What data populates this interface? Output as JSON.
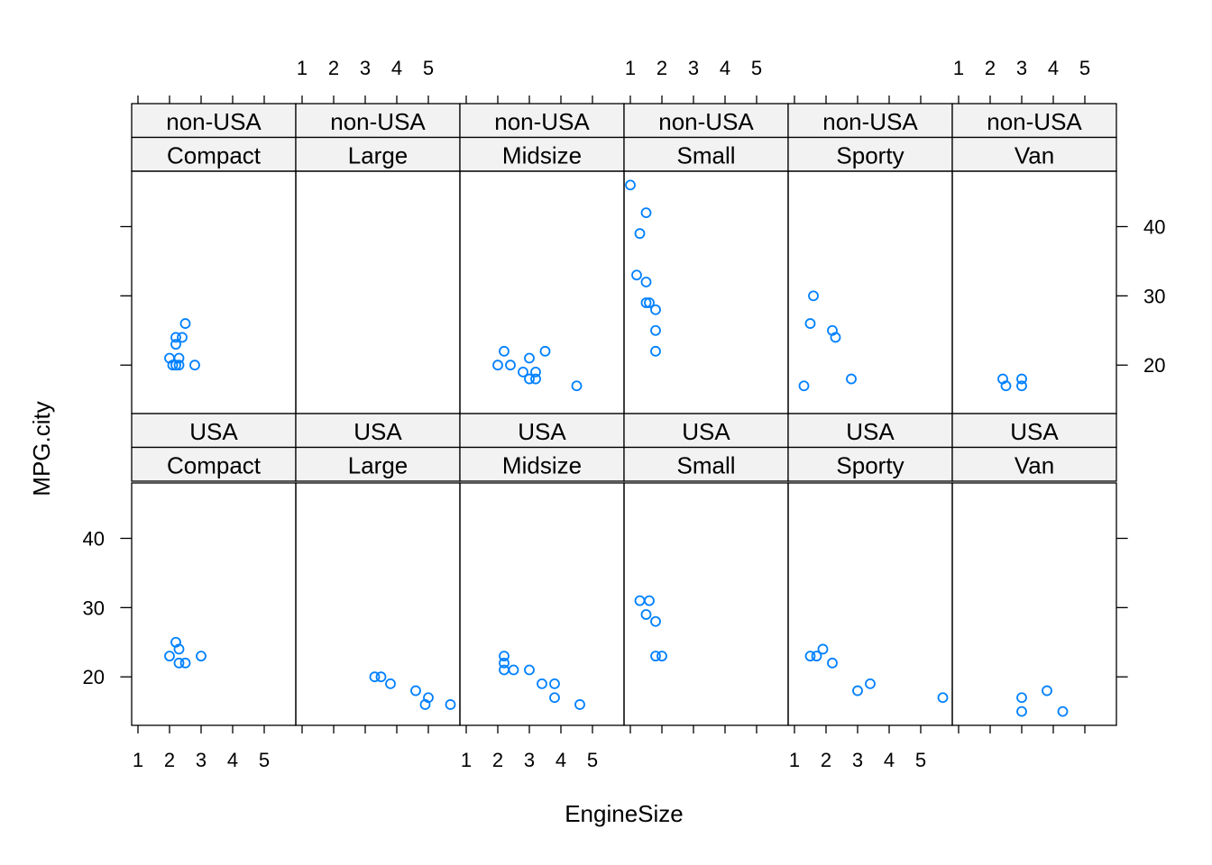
{
  "chart_data": {
    "type": "scatter",
    "xlabel": "EngineSize",
    "ylabel": "MPG.city",
    "x_ticks": [
      1,
      2,
      3,
      4,
      5
    ],
    "y_ticks": [
      20,
      30,
      40
    ],
    "xlim": [
      0.8,
      6.0
    ],
    "ylim": [
      13,
      48
    ],
    "point_color": "#0080ff",
    "strip_color": "#f2f2f2",
    "layout": "6 columns x 2 rows",
    "panels": [
      {
        "origin": "non-USA",
        "type": "Compact",
        "points": [
          [
            2.0,
            21
          ],
          [
            2.1,
            20
          ],
          [
            2.2,
            20
          ],
          [
            2.2,
            23
          ],
          [
            2.2,
            24
          ],
          [
            2.3,
            21
          ],
          [
            2.3,
            20
          ],
          [
            2.4,
            24
          ],
          [
            2.5,
            26
          ],
          [
            2.8,
            20
          ]
        ]
      },
      {
        "origin": "non-USA",
        "type": "Large",
        "points": []
      },
      {
        "origin": "non-USA",
        "type": "Midsize",
        "points": [
          [
            2.0,
            20
          ],
          [
            2.2,
            22
          ],
          [
            2.4,
            20
          ],
          [
            2.8,
            19
          ],
          [
            3.0,
            21
          ],
          [
            3.0,
            18
          ],
          [
            3.2,
            19
          ],
          [
            3.2,
            18
          ],
          [
            3.5,
            22
          ],
          [
            4.5,
            17
          ]
        ]
      },
      {
        "origin": "non-USA",
        "type": "Small",
        "points": [
          [
            1.0,
            46
          ],
          [
            1.2,
            33
          ],
          [
            1.3,
            39
          ],
          [
            1.5,
            42
          ],
          [
            1.5,
            32
          ],
          [
            1.5,
            29
          ],
          [
            1.6,
            29
          ],
          [
            1.8,
            28
          ],
          [
            1.8,
            25
          ],
          [
            1.8,
            22
          ]
        ]
      },
      {
        "origin": "non-USA",
        "type": "Sporty",
        "points": [
          [
            1.3,
            17
          ],
          [
            1.5,
            26
          ],
          [
            1.6,
            30
          ],
          [
            2.2,
            25
          ],
          [
            2.3,
            24
          ],
          [
            2.8,
            18
          ]
        ]
      },
      {
        "origin": "non-USA",
        "type": "Van",
        "points": [
          [
            2.4,
            18
          ],
          [
            2.5,
            17
          ],
          [
            3.0,
            18
          ],
          [
            3.0,
            17
          ]
        ]
      },
      {
        "origin": "USA",
        "type": "Compact",
        "points": [
          [
            2.0,
            23
          ],
          [
            2.2,
            25
          ],
          [
            2.3,
            24
          ],
          [
            2.3,
            22
          ],
          [
            2.5,
            22
          ],
          [
            3.0,
            23
          ]
        ]
      },
      {
        "origin": "USA",
        "type": "Large",
        "points": [
          [
            3.3,
            20
          ],
          [
            3.5,
            20
          ],
          [
            3.8,
            19
          ],
          [
            4.6,
            18
          ],
          [
            4.9,
            16
          ],
          [
            5.0,
            17
          ],
          [
            5.7,
            16
          ]
        ]
      },
      {
        "origin": "USA",
        "type": "Midsize",
        "points": [
          [
            2.2,
            23
          ],
          [
            2.2,
            22
          ],
          [
            2.2,
            21
          ],
          [
            2.5,
            21
          ],
          [
            3.0,
            21
          ],
          [
            3.4,
            19
          ],
          [
            3.8,
            19
          ],
          [
            3.8,
            17
          ],
          [
            4.6,
            16
          ]
        ]
      },
      {
        "origin": "USA",
        "type": "Small",
        "points": [
          [
            1.3,
            31
          ],
          [
            1.5,
            29
          ],
          [
            1.6,
            31
          ],
          [
            1.8,
            28
          ],
          [
            1.8,
            23
          ],
          [
            2.0,
            23
          ]
        ]
      },
      {
        "origin": "USA",
        "type": "Sporty",
        "points": [
          [
            1.5,
            23
          ],
          [
            1.7,
            23
          ],
          [
            1.9,
            24
          ],
          [
            2.2,
            22
          ],
          [
            3.0,
            18
          ],
          [
            3.4,
            19
          ],
          [
            5.7,
            17
          ]
        ]
      },
      {
        "origin": "USA",
        "type": "Van",
        "points": [
          [
            3.0,
            17
          ],
          [
            3.0,
            15
          ],
          [
            3.8,
            18
          ],
          [
            4.3,
            15
          ]
        ]
      }
    ]
  }
}
